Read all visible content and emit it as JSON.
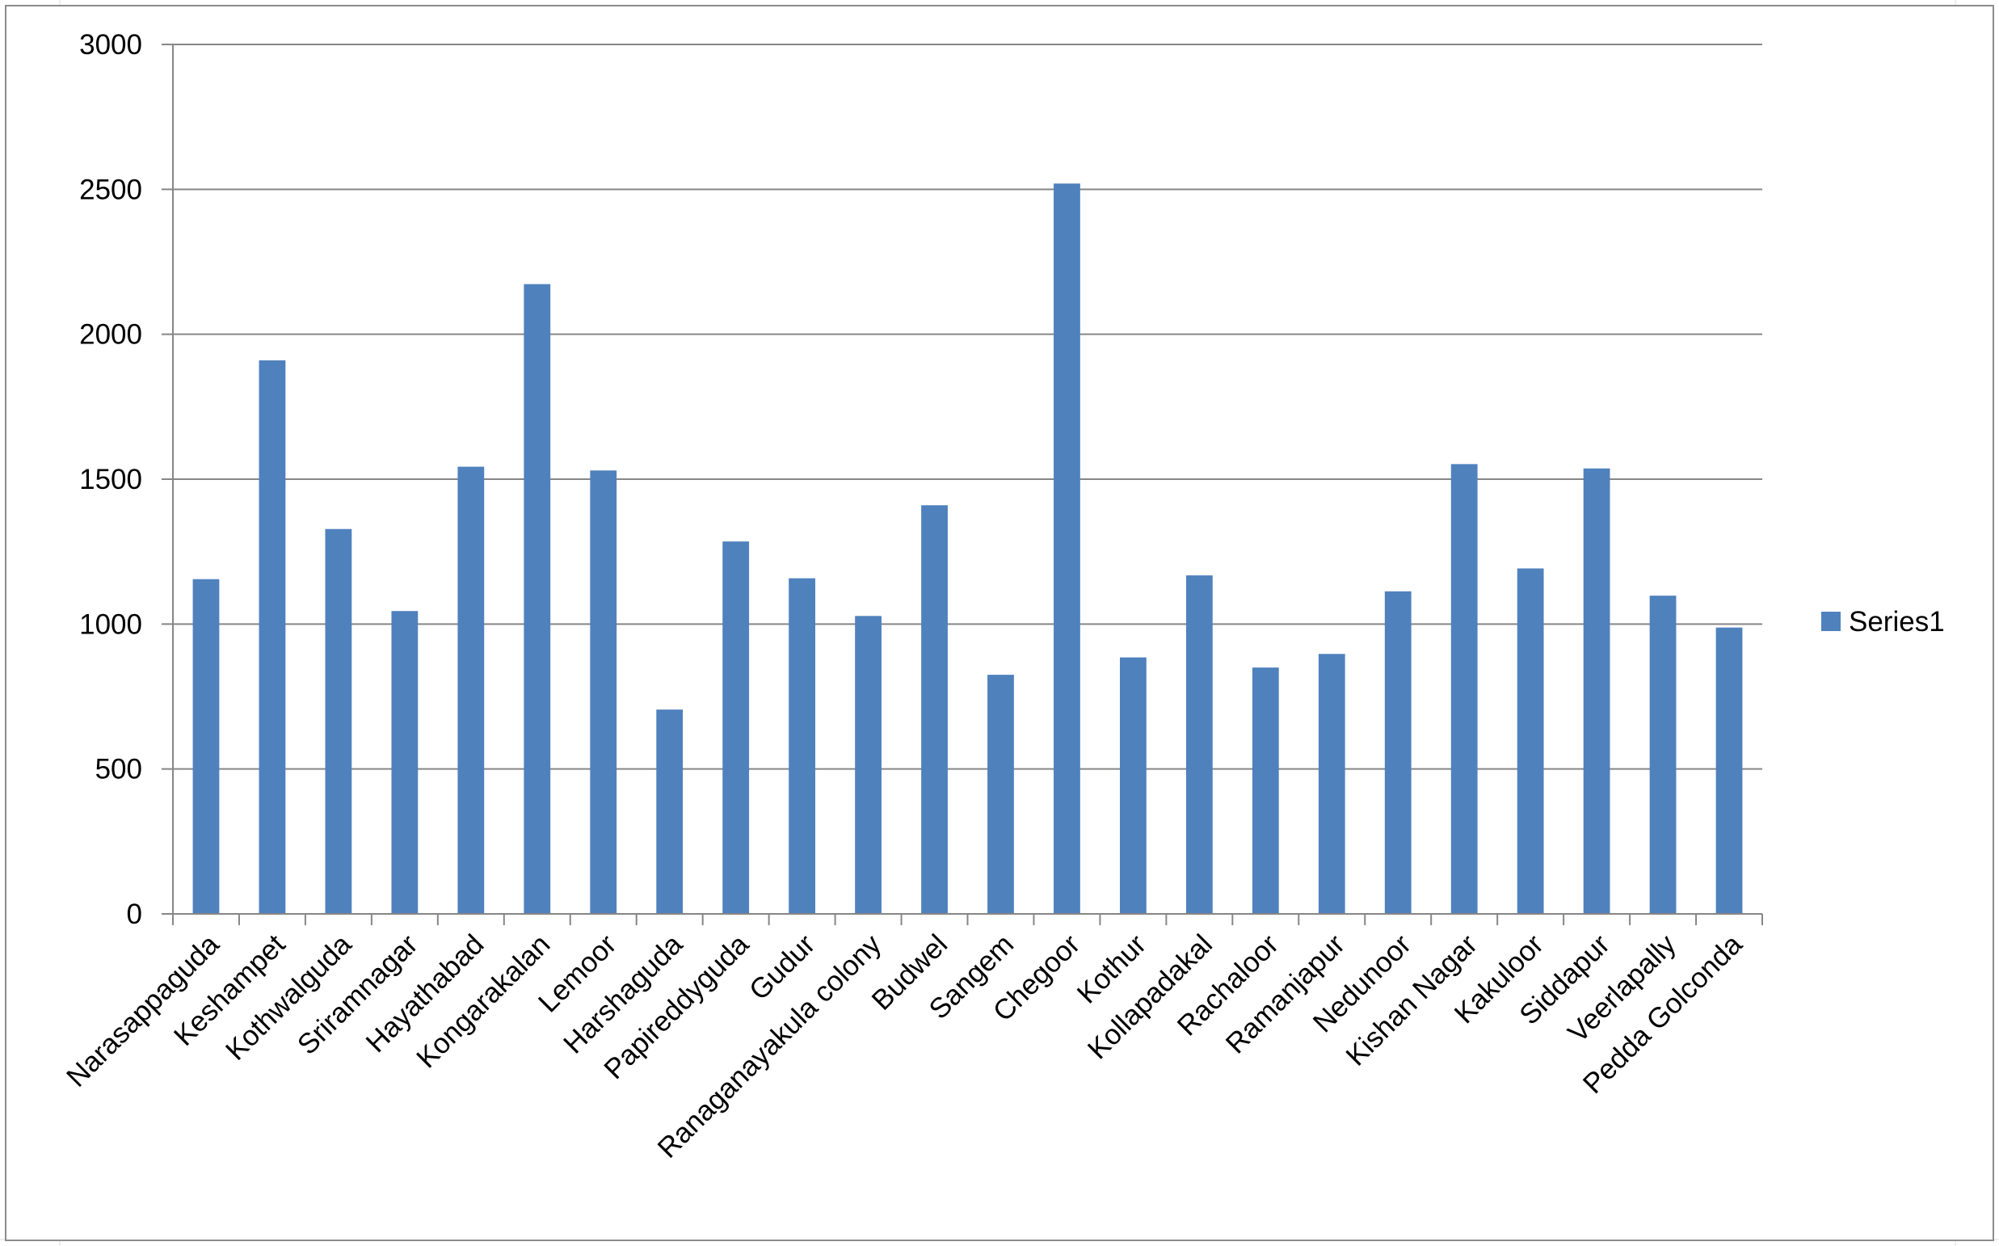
{
  "colors": {
    "bar": "#4F81BD",
    "grid": "#868686",
    "axis": "#868686",
    "sheet_grid": "#dcdcdc"
  },
  "chart_data": {
    "type": "bar",
    "categories": [
      "Narasappaguda",
      "Keshampet",
      "Kothwalguda",
      "Sriramnagar",
      "Hayathabad",
      "Kongarakalan",
      "Lemoor",
      "Harshaguda",
      "Papireddyguda",
      "Gudur",
      "Ranaganayakula colony",
      "Budwel",
      "Sangem",
      "Chegoor",
      "Kothur",
      "Kollapadakal",
      "Rachaloor",
      "Ramanjapur",
      "Nedunoor",
      "Kishan Nagar",
      "Kakuloor",
      "Siddapur",
      "Veerlapally",
      "Pedda Golconda"
    ],
    "series": [
      {
        "name": "Series1",
        "values": [
          1155,
          1910,
          1328,
          1045,
          1543,
          2173,
          1530,
          705,
          1285,
          1158,
          1028,
          1410,
          825,
          2520,
          885,
          1168,
          850,
          897,
          1113,
          1552,
          1192,
          1537,
          1098,
          988
        ]
      }
    ],
    "ylim": [
      0,
      3000
    ],
    "yticks": [
      0,
      500,
      1000,
      1500,
      2000,
      2500,
      3000
    ],
    "grid": true,
    "legend_position": "right"
  }
}
